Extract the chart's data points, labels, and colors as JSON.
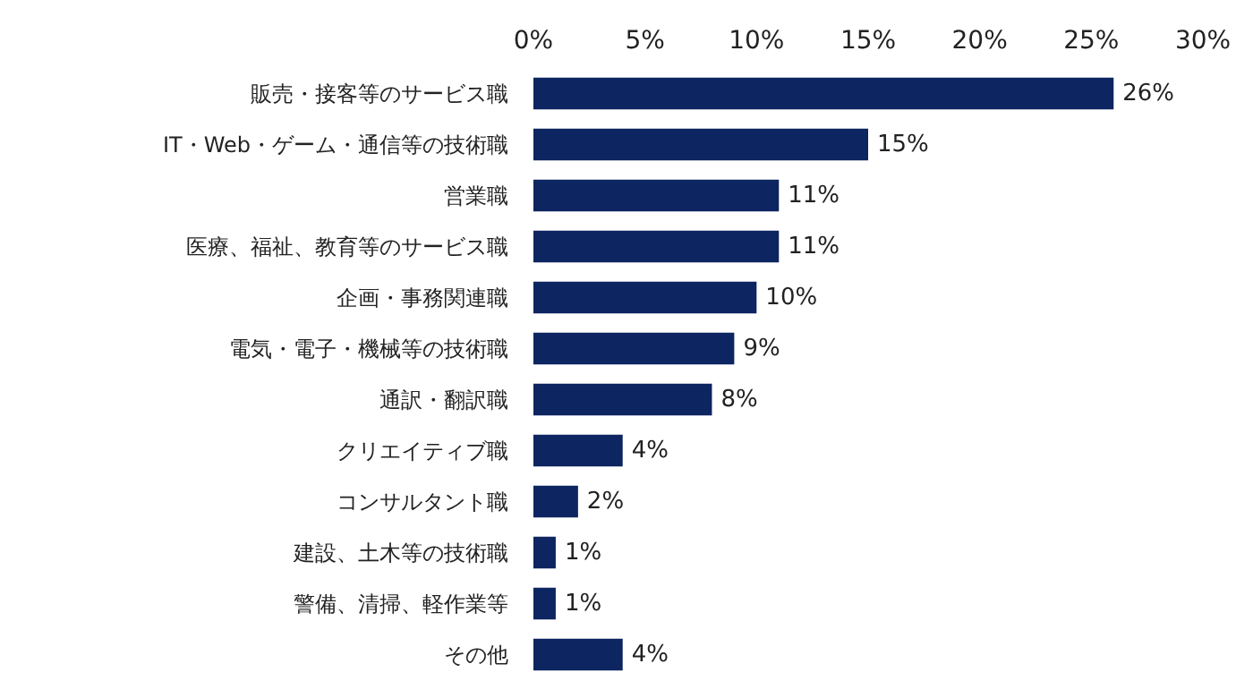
{
  "chart_data": {
    "type": "bar",
    "orientation": "horizontal",
    "categories": [
      "販売・接客等のサービス職",
      "IT・Web・ゲーム・通信等の技術職",
      "営業職",
      "医療、福祉、教育等のサービス職",
      "企画・事務関連職",
      "電気・電子・機械等の技術職",
      "通訳・翻訳職",
      "クリエイティブ職",
      "コンサルタント職",
      "建設、土木等の技術職",
      "警備、清掃、軽作業等",
      "その他"
    ],
    "values": [
      26,
      15,
      11,
      11,
      10,
      9,
      8,
      4,
      2,
      1,
      1,
      4
    ],
    "value_labels": [
      "26%",
      "15%",
      "11%",
      "11%",
      "10%",
      "9%",
      "8%",
      "4%",
      "2%",
      "1%",
      "1%",
      "4%"
    ],
    "color": "#0d2560",
    "xlim": [
      0,
      30
    ],
    "xticks": [
      {
        "value": 0,
        "label": "0%"
      },
      {
        "value": 5,
        "label": "5%"
      },
      {
        "value": 10,
        "label": "10%"
      },
      {
        "value": 15,
        "label": "15%"
      },
      {
        "value": 20,
        "label": "20%"
      },
      {
        "value": 25,
        "label": "25%"
      },
      {
        "value": 30,
        "label": "30%"
      }
    ],
    "grid": false
  }
}
